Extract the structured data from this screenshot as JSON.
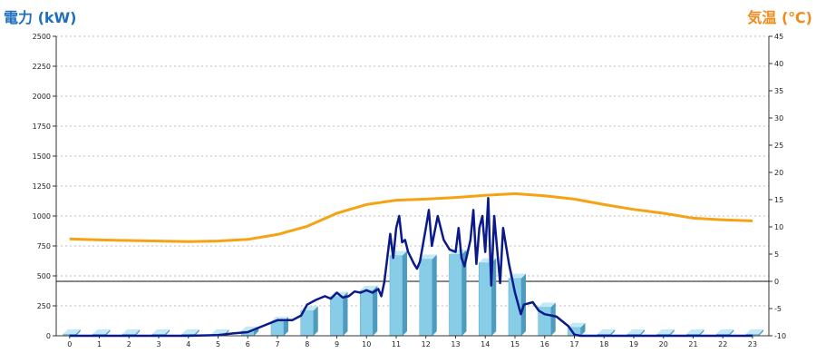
{
  "chart_data": {
    "type": "bar",
    "ylabel_left": "電力 (kW)",
    "ylabel_right": "気温 (℃)",
    "categories": [
      "0",
      "1",
      "2",
      "3",
      "4",
      "5",
      "6",
      "7",
      "8",
      "9",
      "10",
      "11",
      "12",
      "13",
      "14",
      "15",
      "16",
      "17",
      "18",
      "19",
      "20",
      "21",
      "22",
      "23"
    ],
    "y_left_lim": [
      0,
      2500
    ],
    "y_left_ticks": [
      "0",
      "250",
      "500",
      "750",
      "1000",
      "1250",
      "1500",
      "1750",
      "2000",
      "2250",
      "2500"
    ],
    "y_right_lim": [
      -10,
      45
    ],
    "y_right_ticks": [
      "-10",
      "-5",
      "0",
      "5",
      "10",
      "15",
      "20",
      "25",
      "30",
      "35",
      "40",
      "45"
    ],
    "grid": true,
    "legend": "none",
    "series": [
      {
        "kind": "bar",
        "axis": "left",
        "color": "#87cde8",
        "values": [
          15,
          15,
          15,
          15,
          15,
          15,
          40,
          120,
          210,
          330,
          380,
          670,
          640,
          680,
          610,
          480,
          240,
          70,
          15,
          15,
          15,
          15,
          15,
          15
        ]
      },
      {
        "kind": "line",
        "axis": "left",
        "color": "#0a1a8a",
        "points": [
          [
            0,
            0
          ],
          [
            4,
            0
          ],
          [
            5,
            5
          ],
          [
            5.5,
            20
          ],
          [
            6,
            30
          ],
          [
            6.5,
            80
          ],
          [
            7,
            130
          ],
          [
            7.5,
            130
          ],
          [
            7.8,
            170
          ],
          [
            8,
            260
          ],
          [
            8.3,
            300
          ],
          [
            8.6,
            330
          ],
          [
            8.8,
            310
          ],
          [
            9,
            360
          ],
          [
            9.2,
            320
          ],
          [
            9.4,
            330
          ],
          [
            9.6,
            370
          ],
          [
            9.8,
            360
          ],
          [
            10,
            380
          ],
          [
            10.2,
            360
          ],
          [
            10.4,
            390
          ],
          [
            10.5,
            330
          ],
          [
            10.6,
            450
          ],
          [
            10.8,
            850
          ],
          [
            10.9,
            650
          ],
          [
            11,
            900
          ],
          [
            11.1,
            1000
          ],
          [
            11.2,
            780
          ],
          [
            11.3,
            800
          ],
          [
            11.4,
            700
          ],
          [
            11.5,
            650
          ],
          [
            11.6,
            600
          ],
          [
            11.7,
            560
          ],
          [
            11.8,
            620
          ],
          [
            12,
            900
          ],
          [
            12.1,
            1050
          ],
          [
            12.2,
            750
          ],
          [
            12.4,
            1000
          ],
          [
            12.6,
            800
          ],
          [
            12.8,
            720
          ],
          [
            13,
            700
          ],
          [
            13.1,
            900
          ],
          [
            13.2,
            650
          ],
          [
            13.3,
            580
          ],
          [
            13.5,
            800
          ],
          [
            13.6,
            1050
          ],
          [
            13.7,
            600
          ],
          [
            13.8,
            900
          ],
          [
            13.9,
            1000
          ],
          [
            14,
            700
          ],
          [
            14.1,
            1150
          ],
          [
            14.2,
            420
          ],
          [
            14.3,
            1000
          ],
          [
            14.5,
            440
          ],
          [
            14.6,
            900
          ],
          [
            14.8,
            600
          ],
          [
            15,
            360
          ],
          [
            15.2,
            180
          ],
          [
            15.3,
            260
          ],
          [
            15.6,
            280
          ],
          [
            15.8,
            210
          ],
          [
            16,
            180
          ],
          [
            16.4,
            160
          ],
          [
            16.8,
            80
          ],
          [
            17,
            10
          ],
          [
            17.2,
            0
          ],
          [
            23,
            0
          ]
        ]
      },
      {
        "kind": "line",
        "axis": "right",
        "color": "#f5a314",
        "x": [
          0,
          1,
          2,
          3,
          4,
          5,
          6,
          7,
          8,
          9,
          10,
          11,
          12,
          13,
          14,
          15,
          16,
          17,
          18,
          19,
          20,
          21,
          22,
          23
        ],
        "values": [
          7.8,
          7.6,
          7.5,
          7.4,
          7.3,
          7.4,
          7.7,
          8.6,
          10.1,
          12.5,
          14.1,
          14.9,
          15.1,
          15.4,
          15.8,
          16.1,
          15.7,
          15.1,
          14.1,
          13.2,
          12.5,
          11.6,
          11.3,
          11.1
        ]
      }
    ]
  }
}
